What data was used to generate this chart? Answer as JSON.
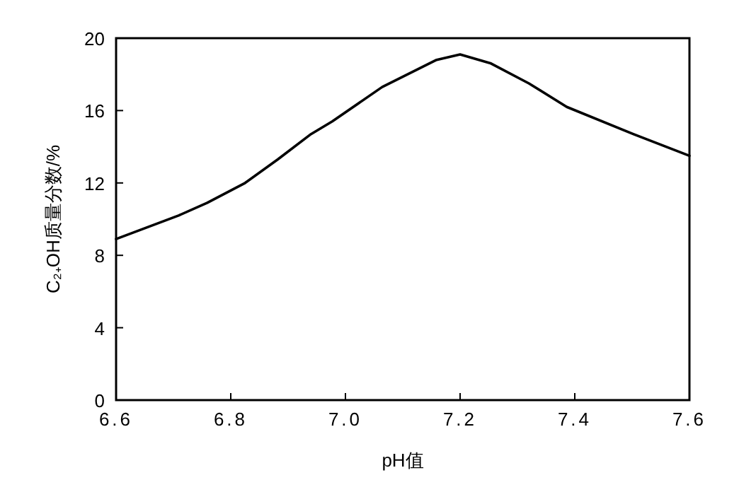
{
  "chart_data": {
    "type": "line",
    "xlabel": "pH值",
    "ylabel": "C₂₊OH质量分数/%",
    "x": [
      6.6,
      6.709,
      6.759,
      6.825,
      6.882,
      6.94,
      6.977,
      7.064,
      7.159,
      7.2,
      7.254,
      7.32,
      7.386,
      7.502,
      7.6
    ],
    "series": [
      {
        "color": "#000000",
        "values": [
          8.9,
          10.2,
          10.9,
          12.0,
          13.3,
          14.7,
          15.4,
          17.3,
          18.8,
          19.1,
          18.6,
          17.5,
          16.2,
          14.7,
          13.5
        ]
      }
    ],
    "xlim": [
      6.6,
      7.6
    ],
    "ylim": [
      0,
      20
    ],
    "xticks": [
      {
        "value": 6.6,
        "label": "6.6"
      },
      {
        "value": 6.8,
        "label": "6.8"
      },
      {
        "value": 7.0,
        "label": "7.0"
      },
      {
        "value": 7.2,
        "label": "7.2"
      },
      {
        "value": 7.4,
        "label": "7.4"
      },
      {
        "value": 7.6,
        "label": "7.6"
      }
    ],
    "yticks": [
      0,
      4,
      8,
      12,
      16,
      20
    ],
    "marker": "none",
    "line_style": "solid"
  }
}
